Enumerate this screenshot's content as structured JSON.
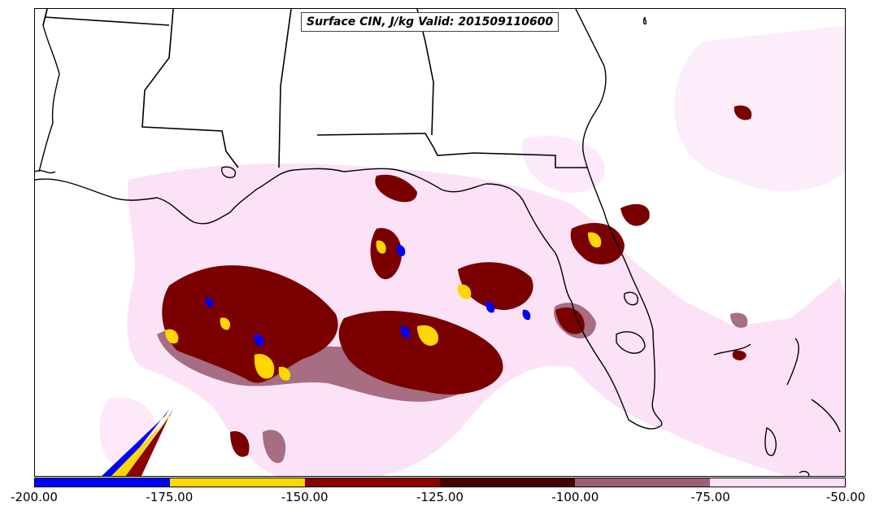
{
  "title": "Surface CIN, J/kg Valid: 201509110600",
  "colorbar": {
    "bins": [
      {
        "from": -200,
        "to": -175,
        "color": "#0000ff"
      },
      {
        "from": -175,
        "to": -150,
        "color": "#ffd700"
      },
      {
        "from": -150,
        "to": -125,
        "color": "#8b0000"
      },
      {
        "from": -125,
        "to": -100,
        "color": "#4a0000"
      },
      {
        "from": -100,
        "to": -75,
        "color": "#9c6177"
      },
      {
        "from": -75,
        "to": -50,
        "color": "#fce0f6"
      }
    ],
    "tick_labels": [
      "-200.00",
      "-175.00",
      "-150.00",
      "-125.00",
      "-100.00",
      "-75.00",
      "-50.00"
    ]
  }
}
